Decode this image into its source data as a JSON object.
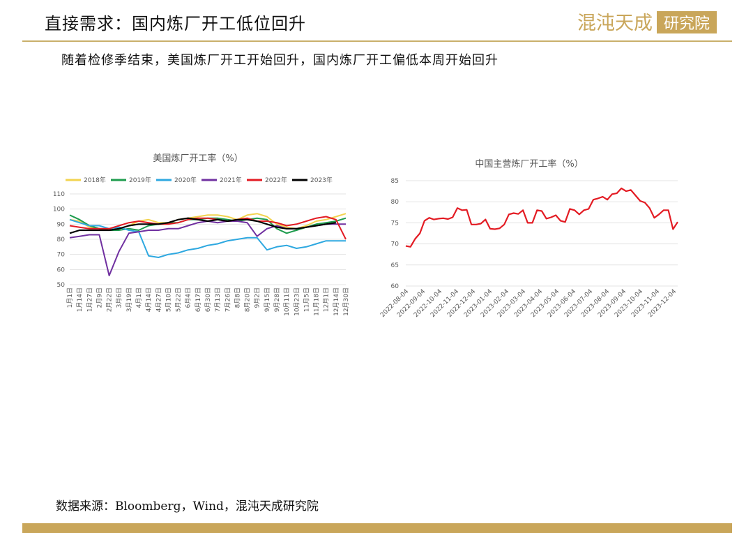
{
  "header": {
    "title": "直接需求：国内炼厂开工低位回升",
    "logo_text": "混沌天成",
    "logo_box_text": "研究院"
  },
  "subtitle": "随着检修季结束，美国炼厂开工开始回升，国内炼厂开工偏低本周开始回升",
  "source": "数据来源：Bloomberg，Wind，混沌天成研究院",
  "colors": {
    "accent_gold": "#c9a65a",
    "rule_gold": "#c9b06b"
  },
  "chart_data": [
    {
      "type": "line",
      "title": "美国炼厂开工率（%）",
      "legend_position": "top",
      "ylim": [
        50,
        110
      ],
      "yticks": [
        50,
        60,
        70,
        80,
        90,
        100,
        110
      ],
      "grid": true,
      "categories": [
        "1月1日",
        "1月14日",
        "1月27日",
        "2月9日",
        "2月22日",
        "3月6日",
        "3月19日",
        "4月1日",
        "4月14日",
        "4月27日",
        "5月10日",
        "5月22日",
        "6月4日",
        "6月17日",
        "6月30日",
        "7月13日",
        "7月26日",
        "8月8日",
        "8月20日",
        "9月2日",
        "9月15日",
        "9月28日",
        "10月11日",
        "10月23日",
        "11月5日",
        "11月18日",
        "12月1日",
        "12月14日",
        "12月30日"
      ],
      "series": [
        {
          "name": "2018年",
          "color": "#f2d34f",
          "values": [
            93,
            92,
            88,
            87,
            86,
            87,
            89,
            92,
            93,
            91,
            91,
            93,
            94,
            95,
            96,
            96,
            95,
            93,
            96,
            97,
            95,
            90,
            88,
            87,
            89,
            92,
            93,
            95,
            97
          ]
        },
        {
          "name": "2019年",
          "color": "#1e9c4e",
          "values": [
            96,
            93,
            89,
            87,
            86,
            86,
            87,
            86,
            89,
            90,
            91,
            91,
            93,
            93,
            94,
            94,
            93,
            92,
            93,
            94,
            93,
            87,
            84,
            86,
            88,
            90,
            91,
            92,
            94
          ]
        },
        {
          "name": "2020年",
          "color": "#2ea8e0",
          "values": [
            93,
            91,
            89,
            89,
            87,
            88,
            86,
            85,
            69,
            68,
            70,
            71,
            73,
            74,
            76,
            77,
            79,
            80,
            81,
            81,
            73,
            75,
            76,
            74,
            75,
            77,
            79,
            79,
            79
          ]
        },
        {
          "name": "2021年",
          "color": "#7030a0",
          "values": [
            81,
            82,
            83,
            83,
            56,
            72,
            84,
            85,
            86,
            86,
            87,
            87,
            89,
            91,
            92,
            91,
            92,
            92,
            91,
            82,
            87,
            89,
            87,
            87,
            88,
            89,
            90,
            90,
            90
          ]
        },
        {
          "name": "2022年",
          "color": "#e31b23",
          "values": [
            89,
            88,
            87,
            87,
            87,
            89,
            91,
            92,
            91,
            90,
            90,
            91,
            93,
            94,
            94,
            93,
            92,
            93,
            94,
            92,
            92,
            91,
            89,
            90,
            92,
            94,
            95,
            93,
            80
          ]
        },
        {
          "name": "2023年",
          "color": "#000000",
          "values": [
            84,
            86,
            86,
            86,
            86,
            87,
            89,
            90,
            90,
            90,
            91,
            93,
            94,
            93,
            92,
            93,
            92,
            93,
            93,
            92,
            90,
            88,
            87,
            87,
            88,
            89,
            90,
            91,
            null
          ]
        }
      ]
    },
    {
      "type": "line",
      "title": "中国主营炼厂开工率（%）",
      "ylim": [
        60,
        85
      ],
      "yticks": [
        60,
        65,
        70,
        75,
        80,
        85
      ],
      "grid": true,
      "x_labels": [
        "2022-08-04",
        "2022-09-04",
        "2022-10-04",
        "2022-11-04",
        "2022-12-04",
        "2023-01-04",
        "2023-02-04",
        "2023-03-04",
        "2023-04-04",
        "2023-05-04",
        "2023-06-04",
        "2023-07-04",
        "2023-08-04",
        "2023-09-04",
        "2023-10-04",
        "2023-11-04",
        "2023-12-04"
      ],
      "series": [
        {
          "name": "",
          "color": "#e31b23",
          "values": [
            69.5,
            69.3,
            71.2,
            72.5,
            75.5,
            76.2,
            75.8,
            76.0,
            76.1,
            75.9,
            76.3,
            78.5,
            78.0,
            78.1,
            74.6,
            74.6,
            74.8,
            75.8,
            73.6,
            73.5,
            73.7,
            74.6,
            77.0,
            77.3,
            77.1,
            78.0,
            75.0,
            75.0,
            78.0,
            77.8,
            76.0,
            76.3,
            76.8,
            75.5,
            75.2,
            78.3,
            78.0,
            77.0,
            78.0,
            78.3,
            80.5,
            80.8,
            81.2,
            80.5,
            81.8,
            82.0,
            83.2,
            82.5,
            82.8,
            81.5,
            80.2,
            79.8,
            78.5,
            76.2,
            77.0,
            78.0,
            78.0,
            73.5,
            75.2
          ]
        }
      ]
    }
  ]
}
